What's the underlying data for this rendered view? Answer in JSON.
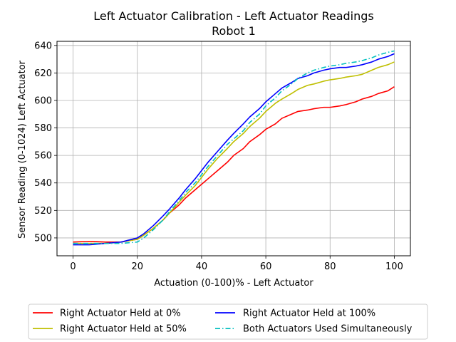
{
  "chart_data": {
    "type": "line",
    "title": "Left Actuator Calibration - Left Actuator Readings",
    "subtitle": "Robot 1",
    "xlabel": "Actuation (0-100)%  - Left Actuator",
    "ylabel": "Sensor Reading (0-1024) Left Actuator",
    "xlim": [
      -5,
      105
    ],
    "ylim": [
      487,
      643
    ],
    "x_ticks": [
      0,
      20,
      40,
      60,
      80,
      100
    ],
    "y_ticks": [
      500,
      520,
      540,
      560,
      580,
      600,
      620,
      640
    ],
    "grid": true,
    "legend_position": "bottom",
    "series": [
      {
        "name": "Right Actuator Held at 0%",
        "color": "#ff0000",
        "dash": "solid",
        "x": [
          0,
          5,
          10,
          15,
          20,
          22,
          25,
          28,
          30,
          33,
          35,
          38,
          40,
          42,
          45,
          48,
          50,
          53,
          55,
          58,
          60,
          63,
          65,
          68,
          70,
          73,
          75,
          78,
          80,
          83,
          85,
          88,
          90,
          93,
          95,
          98,
          100
        ],
        "y": [
          497,
          497.5,
          497,
          497,
          499,
          502,
          507,
          513,
          518,
          524,
          529,
          535,
          539,
          543,
          549,
          555,
          560,
          565,
          570,
          575,
          579,
          583,
          587,
          590,
          592,
          593,
          594,
          595,
          595,
          596,
          597,
          599,
          601,
          603,
          605,
          607,
          610
        ]
      },
      {
        "name": "Right Actuator Held at 50%",
        "color": "#bfbf00",
        "dash": "solid",
        "x": [
          0,
          5,
          10,
          15,
          20,
          22,
          25,
          28,
          30,
          33,
          35,
          38,
          40,
          42,
          45,
          48,
          50,
          53,
          55,
          58,
          60,
          63,
          65,
          68,
          70,
          73,
          75,
          78,
          80,
          83,
          85,
          88,
          90,
          93,
          95,
          98,
          100
        ],
        "y": [
          496,
          496,
          496,
          497,
          499,
          502,
          507,
          513,
          518,
          526,
          531,
          538,
          544,
          550,
          558,
          565,
          570,
          576,
          581,
          587,
          592,
          598,
          601,
          605,
          608,
          611,
          612,
          614,
          615,
          616,
          617,
          618,
          619,
          622,
          624,
          626,
          628
        ]
      },
      {
        "name": "Right Actuator Held at 100%",
        "color": "#0000ff",
        "dash": "solid",
        "x": [
          0,
          5,
          10,
          15,
          20,
          22,
          25,
          28,
          30,
          33,
          35,
          38,
          40,
          42,
          45,
          48,
          50,
          53,
          55,
          58,
          60,
          63,
          65,
          68,
          70,
          73,
          75,
          78,
          80,
          83,
          85,
          88,
          90,
          93,
          95,
          98,
          100
        ],
        "y": [
          495,
          495,
          496,
          497,
          500,
          503,
          509,
          516,
          521,
          529,
          535,
          543,
          549,
          555,
          563,
          571,
          576,
          583,
          588,
          594,
          599,
          605,
          609,
          613,
          616,
          618,
          620,
          622,
          623,
          624,
          624,
          625,
          626,
          628,
          630,
          632,
          634
        ]
      },
      {
        "name": "Both Actuators Used Simultaneously",
        "color": "#00bfbf",
        "dash": "dashdot",
        "x": [
          0,
          5,
          10,
          15,
          20,
          22,
          25,
          28,
          30,
          33,
          35,
          38,
          40,
          42,
          45,
          48,
          50,
          53,
          55,
          58,
          60,
          63,
          65,
          68,
          70,
          73,
          75,
          78,
          80,
          83,
          85,
          88,
          90,
          93,
          95,
          98,
          100
        ],
        "y": [
          496,
          496,
          496,
          496,
          497,
          500,
          506,
          513,
          519,
          527,
          533,
          540,
          546,
          552,
          560,
          568,
          572,
          578,
          584,
          590,
          596,
          602,
          607,
          612,
          616,
          620,
          622,
          624,
          625,
          626,
          627,
          628,
          629,
          631,
          633,
          635,
          636
        ]
      }
    ]
  }
}
